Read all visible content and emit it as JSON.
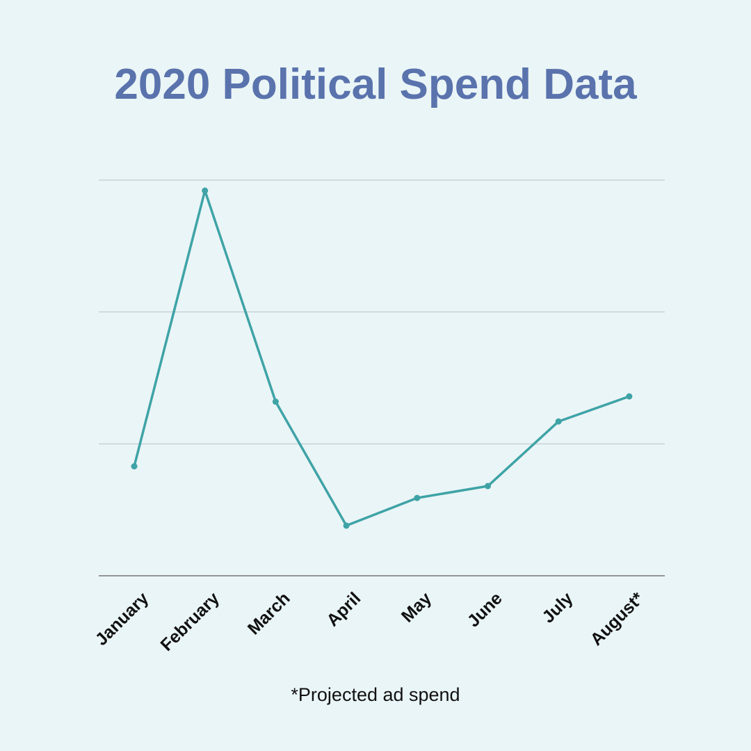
{
  "chart_data": {
    "type": "line",
    "title": "2020 Political Spend Data",
    "categories": [
      "January",
      "February",
      "March",
      "April",
      "May",
      "June",
      "July",
      "August*"
    ],
    "series": [
      {
        "values": [
          0.83,
          2.92,
          1.32,
          0.38,
          0.59,
          0.68,
          1.17,
          1.36
        ]
      }
    ],
    "xlabel": "",
    "ylabel": "",
    "ylim": [
      0,
      3
    ],
    "y_tick_labels_shown": false,
    "grid": true,
    "line_color": "#3fa3a6",
    "title_color": "#5a73ad",
    "background_color": "#eaf5f7",
    "footnote": "*Projected ad spend"
  }
}
